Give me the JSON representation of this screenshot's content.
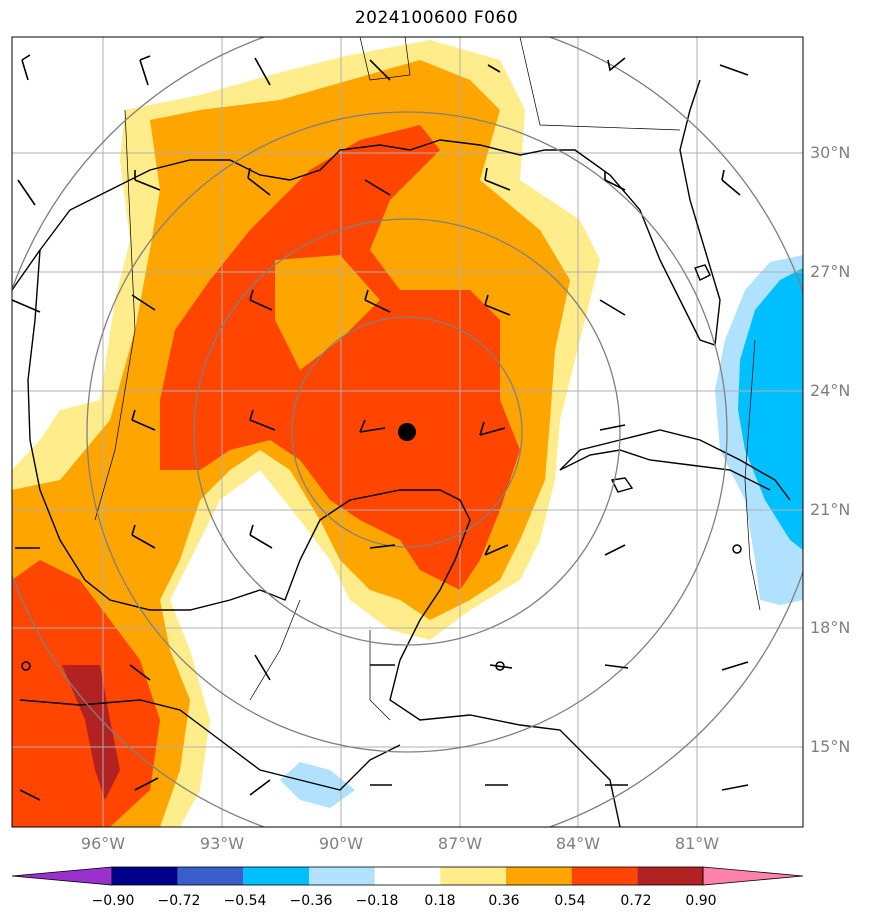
{
  "title": "2024100600 F060",
  "map": {
    "lat_labels": [
      "30°N",
      "27°N",
      "24°N",
      "21°N",
      "18°N",
      "15°N"
    ],
    "lon_labels": [
      "96°W",
      "93°W",
      "90°W",
      "87°W",
      "84°W",
      "81°W"
    ],
    "center_marker": "storm-center-dot",
    "range_rings": 4
  },
  "colorbar": {
    "ticks": [
      "−0.90",
      "−0.72",
      "−0.54",
      "−0.36",
      "−0.18",
      "0.18",
      "0.36",
      "0.54",
      "0.72",
      "0.90"
    ],
    "colors": [
      "#9932cc",
      "#00008b",
      "#3a5fcd",
      "#00bfff",
      "#b0e2ff",
      "#ffffff",
      "#ffec8b",
      "#ffa500",
      "#ff4500",
      "#b22222",
      "#ff82ab"
    ]
  }
}
